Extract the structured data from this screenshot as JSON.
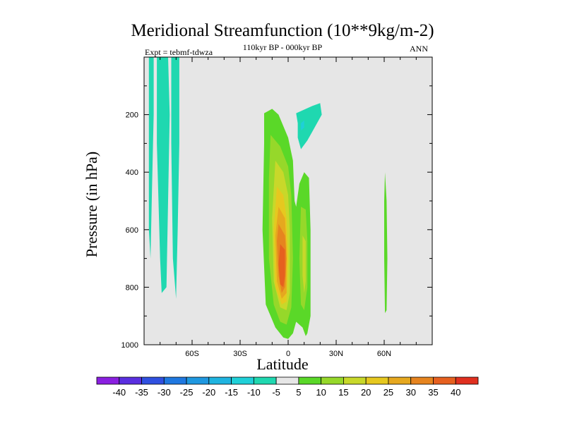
{
  "chart_data": {
    "type": "contour",
    "title": "Meridional Streamfunction (10**9kg/m-2)",
    "subtitle": "110kyr BP - 000kyr BP",
    "experiment": "Expt = tebmf-tdwza",
    "season": "ANN",
    "xlabel": "Latitude",
    "ylabel": "Pressure (in hPa)",
    "xlim": [
      -90,
      90
    ],
    "ylim": [
      0,
      1000
    ],
    "x_ticks": [
      -60,
      -30,
      0,
      30,
      60
    ],
    "x_tick_labels": [
      "60S",
      "30S",
      "0",
      "30N",
      "60N"
    ],
    "y_ticks": [
      200,
      400,
      600,
      800,
      1000
    ],
    "y_tick_labels": [
      "200",
      "400",
      "600",
      "800",
      "1000"
    ],
    "colorbar": {
      "levels": [
        -40,
        -35,
        -30,
        -25,
        -20,
        -15,
        -10,
        -5,
        5,
        10,
        15,
        20,
        25,
        30,
        35,
        40
      ],
      "labels": [
        "-40",
        "-35",
        "-30",
        "-25",
        "-20",
        "-15",
        "-10",
        "-5",
        "5",
        "10",
        "15",
        "20",
        "25",
        "30",
        "35",
        "40"
      ],
      "colors": [
        "#8a1fe0",
        "#5a2fe0",
        "#3050e0",
        "#1f78e0",
        "#1f98e0",
        "#1fb4e0",
        "#1fd0d8",
        "#1fd8b0",
        "#e6e6e6",
        "#5ad828",
        "#96d82a",
        "#c8d82a",
        "#e6c81f",
        "#e6a81f",
        "#e6841f",
        "#e6601f",
        "#e0301f"
      ]
    },
    "background_color": "#e6e6e6",
    "regions": [
      {
        "name": "sh-polar-cell-a",
        "value": -10,
        "points": [
          [
            -87,
            0
          ],
          [
            -84,
            0
          ],
          [
            -84,
            200
          ],
          [
            -85,
            450
          ],
          [
            -86,
            700
          ],
          [
            -87,
            600
          ]
        ]
      },
      {
        "name": "sh-polar-cell-b",
        "value": -10,
        "points": [
          [
            -82,
            0
          ],
          [
            -75,
            0
          ],
          [
            -74,
            200
          ],
          [
            -75,
            500
          ],
          [
            -76,
            800
          ],
          [
            -79,
            820
          ],
          [
            -80,
            700
          ],
          [
            -82,
            300
          ]
        ]
      },
      {
        "name": "sh-polar-cell-c",
        "value": -10,
        "points": [
          [
            -73,
            0
          ],
          [
            -68,
            0
          ],
          [
            -68,
            300
          ],
          [
            -69,
            600
          ],
          [
            -70,
            840
          ],
          [
            -72,
            700
          ],
          [
            -73,
            300
          ]
        ]
      },
      {
        "name": "upper-neg-cell",
        "value": -10,
        "points": [
          [
            5,
            195
          ],
          [
            15,
            170
          ],
          [
            20,
            160
          ],
          [
            21,
            200
          ],
          [
            15,
            260
          ],
          [
            12,
            290
          ],
          [
            8,
            320
          ],
          [
            6,
            280
          ],
          [
            6,
            230
          ]
        ]
      },
      {
        "name": "upper-neg-core",
        "value": -15,
        "points": [
          [
            8,
            230
          ],
          [
            10,
            220
          ],
          [
            10,
            245
          ],
          [
            8,
            255
          ]
        ]
      },
      {
        "name": "hadley-5",
        "value": 5,
        "points": [
          [
            -15,
            195
          ],
          [
            -10,
            180
          ],
          [
            -6,
            200
          ],
          [
            0,
            280
          ],
          [
            3,
            360
          ],
          [
            4,
            500
          ],
          [
            5,
            520
          ],
          [
            7,
            440
          ],
          [
            10,
            400
          ],
          [
            13,
            420
          ],
          [
            14,
            600
          ],
          [
            14,
            900
          ],
          [
            12,
            960
          ],
          [
            11,
            970
          ],
          [
            9,
            940
          ],
          [
            5,
            920
          ],
          [
            3,
            960
          ],
          [
            0,
            980
          ],
          [
            -3,
            975
          ],
          [
            -8,
            940
          ],
          [
            -14,
            860
          ],
          [
            -16,
            600
          ],
          [
            -15,
            300
          ]
        ]
      },
      {
        "name": "hadley-10",
        "value": 10,
        "points": [
          [
            -11,
            270
          ],
          [
            -5,
            310
          ],
          [
            0,
            380
          ],
          [
            2,
            480
          ],
          [
            3,
            700
          ],
          [
            2,
            870
          ],
          [
            -1,
            930
          ],
          [
            -5,
            920
          ],
          [
            -9,
            860
          ],
          [
            -12,
            700
          ],
          [
            -12,
            420
          ]
        ]
      },
      {
        "name": "hadley-10-ne",
        "value": 10,
        "points": [
          [
            8,
            520
          ],
          [
            11,
            530
          ],
          [
            12,
            640
          ],
          [
            12,
            800
          ],
          [
            10,
            880
          ],
          [
            8,
            860
          ],
          [
            7,
            700
          ]
        ]
      },
      {
        "name": "hadley-15",
        "value": 15,
        "points": [
          [
            -8,
            360
          ],
          [
            -3,
            400
          ],
          [
            0,
            480
          ],
          [
            1,
            600
          ],
          [
            1,
            820
          ],
          [
            -1,
            880
          ],
          [
            -5,
            870
          ],
          [
            -9,
            780
          ],
          [
            -10,
            560
          ]
        ]
      },
      {
        "name": "hadley-15-ne",
        "value": 15,
        "points": [
          [
            9,
            620
          ],
          [
            11,
            640
          ],
          [
            11,
            780
          ],
          [
            10,
            820
          ],
          [
            9,
            760
          ]
        ]
      },
      {
        "name": "hadley-20",
        "value": 20,
        "points": [
          [
            -7,
            450
          ],
          [
            -3,
            480
          ],
          [
            -1,
            560
          ],
          [
            0,
            700
          ],
          [
            -1,
            850
          ],
          [
            -4,
            860
          ],
          [
            -8,
            800
          ],
          [
            -9,
            600
          ]
        ]
      },
      {
        "name": "hadley-25",
        "value": 25,
        "points": [
          [
            -6,
            520
          ],
          [
            -2,
            560
          ],
          [
            -1,
            660
          ],
          [
            -1,
            820
          ],
          [
            -4,
            840
          ],
          [
            -7,
            780
          ],
          [
            -8,
            620
          ]
        ]
      },
      {
        "name": "hadley-30",
        "value": 30,
        "points": [
          [
            -6,
            580
          ],
          [
            -2,
            620
          ],
          [
            -1,
            700
          ],
          [
            -2,
            800
          ],
          [
            -4,
            820
          ],
          [
            -6,
            760
          ],
          [
            -7,
            640
          ]
        ]
      },
      {
        "name": "hadley-35",
        "value": 35,
        "points": [
          [
            -5,
            650
          ],
          [
            -2,
            670
          ],
          [
            -2,
            760
          ],
          [
            -3,
            800
          ],
          [
            -5,
            790
          ],
          [
            -6,
            720
          ]
        ]
      },
      {
        "name": "nh-mid-cell",
        "value": 5,
        "points": [
          [
            60.5,
            400
          ],
          [
            61.5,
            500
          ],
          [
            62,
            700
          ],
          [
            61.5,
            880
          ],
          [
            60.5,
            890
          ],
          [
            60,
            700
          ],
          [
            60,
            500
          ]
        ]
      }
    ]
  }
}
